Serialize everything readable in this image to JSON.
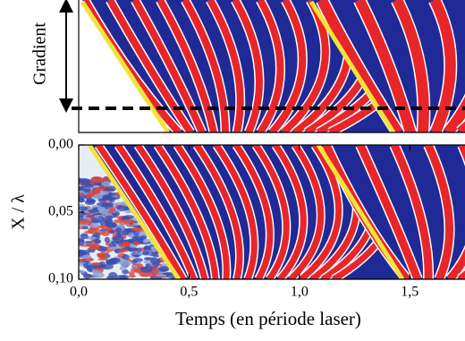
{
  "chart_data": [
    {
      "type": "heatmap",
      "ylabel": "Gradient"
    },
    {
      "type": "heatmap",
      "xlabel": "Temps (en période laser)",
      "ylabel": "X / λ",
      "xlim": [
        0,
        1.75
      ],
      "ylim": [
        0.1,
        0
      ],
      "xticks": [
        {
          "value": 0,
          "label": "0,0"
        },
        {
          "value": 0.5,
          "label": "0,5"
        },
        {
          "value": 1,
          "label": "1,0"
        },
        {
          "value": 1.5,
          "label": "1,5"
        }
      ],
      "yticks": [
        {
          "value": 0,
          "label": "0,00"
        },
        {
          "value": 0.05,
          "label": "0,05"
        },
        {
          "value": 0.1,
          "label": "0,10"
        }
      ]
    }
  ]
}
